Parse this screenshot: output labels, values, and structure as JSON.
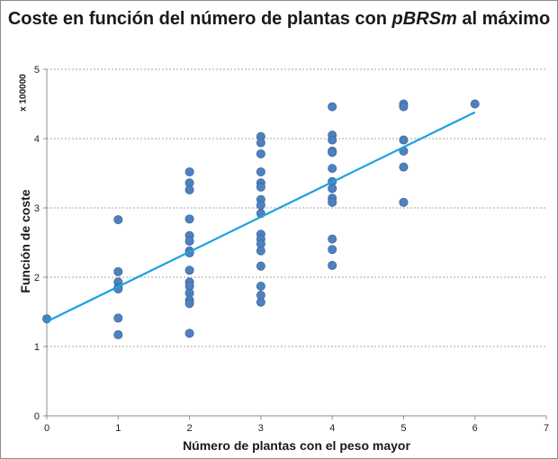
{
  "chart_data": {
    "type": "scatter",
    "title": "Coste en función del número de plantas  con",
    "title_em": "pBRSm",
    "title_tail": "al máximo",
    "xlabel": "Número de plantas con el  peso mayor",
    "ylabel": "Función de coste",
    "y_scale_note": "x 100000",
    "xlim": [
      0,
      7
    ],
    "ylim": [
      0,
      5
    ],
    "x_ticks": [
      "0",
      "1",
      "2",
      "3",
      "4",
      "5",
      "6",
      "7"
    ],
    "y_ticks": [
      "0",
      "1",
      "2",
      "3",
      "4",
      "5"
    ],
    "grid": "horizontal-dashed",
    "point_color": "#4f81bd",
    "trend_color": "#1ea0e0",
    "series": [
      {
        "points": [
          [
            0,
            1.4
          ],
          [
            1,
            2.83
          ],
          [
            1,
            2.08
          ],
          [
            1,
            1.93
          ],
          [
            1,
            1.85
          ],
          [
            1,
            1.83
          ],
          [
            1,
            1.41
          ],
          [
            1,
            1.17
          ],
          [
            2,
            3.52
          ],
          [
            2,
            3.36
          ],
          [
            2,
            3.26
          ],
          [
            2,
            2.84
          ],
          [
            2,
            2.6
          ],
          [
            2,
            2.52
          ],
          [
            2,
            2.38
          ],
          [
            2,
            2.35
          ],
          [
            2,
            2.1
          ],
          [
            2,
            1.93
          ],
          [
            2,
            1.87
          ],
          [
            2,
            1.77
          ],
          [
            2,
            1.67
          ],
          [
            2,
            1.62
          ],
          [
            2,
            1.19
          ],
          [
            3,
            4.03
          ],
          [
            3,
            3.94
          ],
          [
            3,
            3.78
          ],
          [
            3,
            3.52
          ],
          [
            3,
            3.36
          ],
          [
            3,
            3.3
          ],
          [
            3,
            3.12
          ],
          [
            3,
            3.04
          ],
          [
            3,
            2.92
          ],
          [
            3,
            2.62
          ],
          [
            3,
            2.55
          ],
          [
            3,
            2.48
          ],
          [
            3,
            2.38
          ],
          [
            3,
            2.16
          ],
          [
            3,
            1.87
          ],
          [
            3,
            1.74
          ],
          [
            3,
            1.64
          ],
          [
            4,
            4.46
          ],
          [
            4,
            4.05
          ],
          [
            4,
            3.98
          ],
          [
            4,
            3.82
          ],
          [
            4,
            3.8
          ],
          [
            4,
            3.57
          ],
          [
            4,
            3.38
          ],
          [
            4,
            3.28
          ],
          [
            4,
            3.14
          ],
          [
            4,
            3.08
          ],
          [
            4,
            2.55
          ],
          [
            4,
            2.4
          ],
          [
            4,
            2.17
          ],
          [
            5,
            4.5
          ],
          [
            5,
            4.46
          ],
          [
            5,
            3.98
          ],
          [
            5,
            3.82
          ],
          [
            5,
            3.59
          ],
          [
            5,
            3.08
          ],
          [
            6,
            4.5
          ]
        ]
      }
    ],
    "trendline": {
      "x": [
        0,
        6
      ],
      "y": [
        1.36,
        4.38
      ]
    }
  }
}
